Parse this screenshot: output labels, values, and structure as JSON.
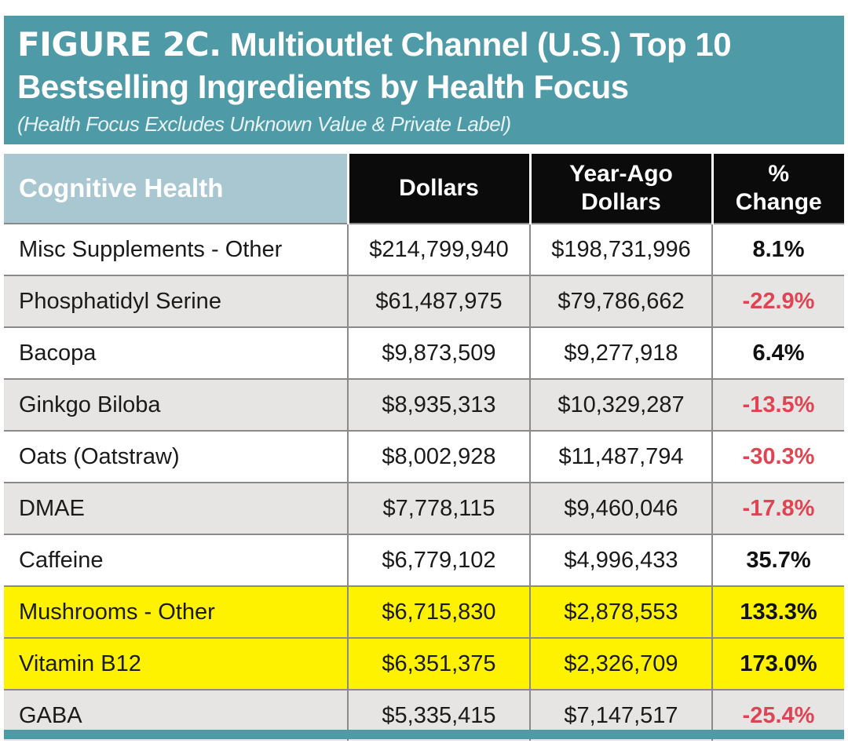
{
  "figure": {
    "label": "FIGURE 2C.",
    "title_line1": "Multioutlet Channel (U.S.) Top 10",
    "title_line2": "Bestselling Ingredients by Health Focus",
    "subtitle": "(Health Focus Excludes Unknown Value & Private Label)"
  },
  "colors": {
    "banner": "#4f9aa7",
    "header_category": "#a9c7d1",
    "header_dark": "#0b0b0b",
    "highlight": "#fff200",
    "negative": "#e04452"
  },
  "chart_data": {
    "type": "table",
    "columns": [
      "Cognitive Health",
      "Dollars",
      "Year-Ago Dollars",
      "% Change"
    ],
    "column_lines": [
      [
        "Cognitive Health"
      ],
      [
        "Dollars"
      ],
      [
        "Year-Ago",
        "Dollars"
      ],
      [
        "%",
        "Change"
      ]
    ],
    "rows": [
      {
        "ingredient": "Misc Supplements - Other",
        "dollars": "$214,799,940",
        "year_ago_dollars": "$198,731,996",
        "pct_change": "8.1%",
        "highlighted": false
      },
      {
        "ingredient": "Phosphatidyl Serine",
        "dollars": "$61,487,975",
        "year_ago_dollars": "$79,786,662",
        "pct_change": "-22.9%",
        "highlighted": false
      },
      {
        "ingredient": "Bacopa",
        "dollars": "$9,873,509",
        "year_ago_dollars": "$9,277,918",
        "pct_change": "6.4%",
        "highlighted": false
      },
      {
        "ingredient": "Ginkgo Biloba",
        "dollars": "$8,935,313",
        "year_ago_dollars": "$10,329,287",
        "pct_change": "-13.5%",
        "highlighted": false
      },
      {
        "ingredient": "Oats (Oatstraw)",
        "dollars": "$8,002,928",
        "year_ago_dollars": "$11,487,794",
        "pct_change": "-30.3%",
        "highlighted": false
      },
      {
        "ingredient": "DMAE",
        "dollars": "$7,778,115",
        "year_ago_dollars": "$9,460,046",
        "pct_change": "-17.8%",
        "highlighted": false
      },
      {
        "ingredient": "Caffeine",
        "dollars": "$6,779,102",
        "year_ago_dollars": "$4,996,433",
        "pct_change": "35.7%",
        "highlighted": false
      },
      {
        "ingredient": "Mushrooms - Other",
        "dollars": "$6,715,830",
        "year_ago_dollars": "$2,878,553",
        "pct_change": "133.3%",
        "highlighted": true
      },
      {
        "ingredient": "Vitamin B12",
        "dollars": "$6,351,375",
        "year_ago_dollars": "$2,326,709",
        "pct_change": "173.0%",
        "highlighted": true
      },
      {
        "ingredient": "GABA",
        "dollars": "$5,335,415",
        "year_ago_dollars": "$7,147,517",
        "pct_change": "-25.4%",
        "highlighted": false
      }
    ]
  }
}
